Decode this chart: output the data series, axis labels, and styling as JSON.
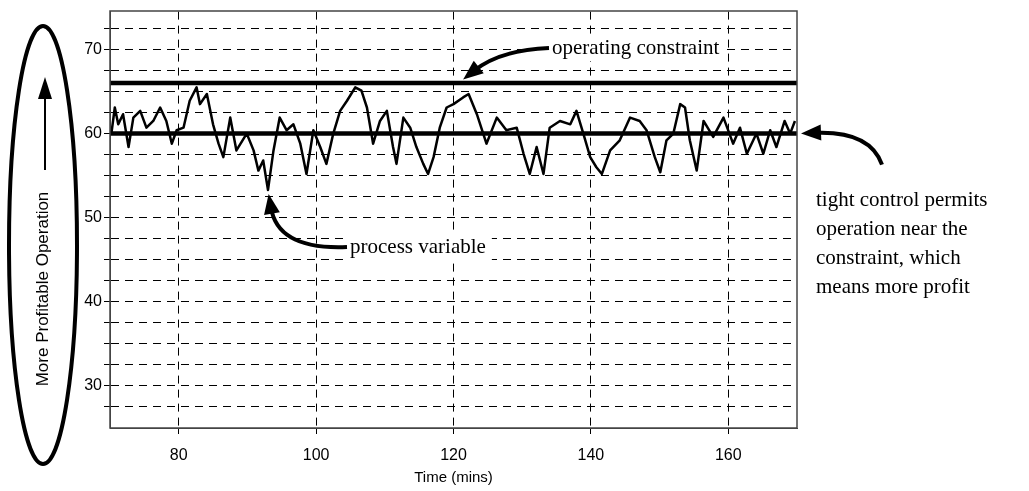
{
  "chart_data": {
    "type": "line",
    "xlabel": "Time (mins)",
    "ylabel": "More Profitable Operation",
    "xlim": [
      70,
      170
    ],
    "xticks": [
      80,
      100,
      120,
      140,
      160
    ],
    "ylim": [
      25,
      74.5
    ],
    "yticks": [
      {
        "value": 27.5,
        "label": null
      },
      30,
      {
        "value": 32.5,
        "label": null
      },
      {
        "value": 35,
        "label": null
      },
      {
        "value": 37.5,
        "label": null
      },
      40,
      {
        "value": 42.5,
        "label": null
      },
      {
        "value": 45,
        "label": null
      },
      {
        "value": 47.5,
        "label": null
      },
      50,
      {
        "value": 52.5,
        "label": null
      },
      {
        "value": 55,
        "label": null
      },
      {
        "value": 57.5,
        "label": null
      },
      60,
      {
        "value": 62.5,
        "label": null
      },
      {
        "value": 65,
        "label": null
      },
      {
        "value": 67.5,
        "label": null
      },
      70,
      {
        "value": 72.5,
        "label": null
      }
    ],
    "grid": true,
    "legend": false,
    "marker": "none",
    "line_style": "solid",
    "series": [
      {
        "color": "#000000",
        "x": [
          70.2,
          70.7,
          71.2,
          71.9,
          72.7,
          73.4,
          74.4,
          75.3,
          76.3,
          77.3,
          78.2,
          79.0,
          79.7,
          80.7,
          81.6,
          82.6,
          83.1,
          84.1,
          85.0,
          85.8,
          86.5,
          87.5,
          88.4,
          89.9,
          90.9,
          91.6,
          92.3,
          93.0,
          93.8,
          94.7,
          95.7,
          96.7,
          97.7,
          98.6,
          99.6,
          100.6,
          101.5,
          102.5,
          103.5,
          104.5,
          105.7,
          106.6,
          107.4,
          108.3,
          109.3,
          110.3,
          111.2,
          111.7,
          112.7,
          113.7,
          114.6,
          115.6,
          116.3,
          117.1,
          118.0,
          119.0,
          120.0,
          121.4,
          122.2,
          123.4,
          124.8,
          126.3,
          127.7,
          129.2,
          130.2,
          131.1,
          132.1,
          133.1,
          134.0,
          135.5,
          137.0,
          137.9,
          138.9,
          139.9,
          140.8,
          141.6,
          142.8,
          144.2,
          145.7,
          147.1,
          148.1,
          149.3,
          150.1,
          151.0,
          152.0,
          153.0,
          153.7,
          154.4,
          155.4,
          156.4,
          157.8,
          159.3,
          160.7,
          161.7,
          162.7,
          164.1,
          165.1,
          166.1,
          167.0,
          168.2,
          169.0,
          169.7
        ],
        "values": [
          60.0,
          63.1,
          61.1,
          62.3,
          58.4,
          61.9,
          62.7,
          60.7,
          61.5,
          63.1,
          61.5,
          58.8,
          60.4,
          60.7,
          63.9,
          65.5,
          63.5,
          64.7,
          61.1,
          58.8,
          57.2,
          61.9,
          58.0,
          60.0,
          58.0,
          55.6,
          56.8,
          53.3,
          58.0,
          61.9,
          60.4,
          61.1,
          58.8,
          55.2,
          60.4,
          58.4,
          56.4,
          60.0,
          62.7,
          63.9,
          65.5,
          65.1,
          63.1,
          58.8,
          61.5,
          62.7,
          58.4,
          56.4,
          61.9,
          60.7,
          58.4,
          56.4,
          55.2,
          57.2,
          60.7,
          63.1,
          63.5,
          64.3,
          64.7,
          62.3,
          58.8,
          61.9,
          60.4,
          60.7,
          57.6,
          55.2,
          58.4,
          55.2,
          60.7,
          61.5,
          61.1,
          62.7,
          60.0,
          57.2,
          56.0,
          55.2,
          58.0,
          59.2,
          61.9,
          61.5,
          60.4,
          57.2,
          55.4,
          59.2,
          60.0,
          63.5,
          63.1,
          59.2,
          55.6,
          61.5,
          59.6,
          61.9,
          58.8,
          60.7,
          57.6,
          60.0,
          57.6,
          60.4,
          58.4,
          61.5,
          60.0,
          61.5
        ]
      }
    ],
    "ref_lines": [
      {
        "axis": "y",
        "value": 66,
        "color": "#000000",
        "line_style": "solid"
      },
      {
        "axis": "y",
        "value": 60,
        "color": "#000000",
        "line_style": "solid"
      }
    ],
    "annotations": [
      "operating constraint",
      "process variable",
      {
        "text": "tight control permits operation near the constraint, which means more profit",
        "x": 170,
        "y": 60
      }
    ]
  }
}
